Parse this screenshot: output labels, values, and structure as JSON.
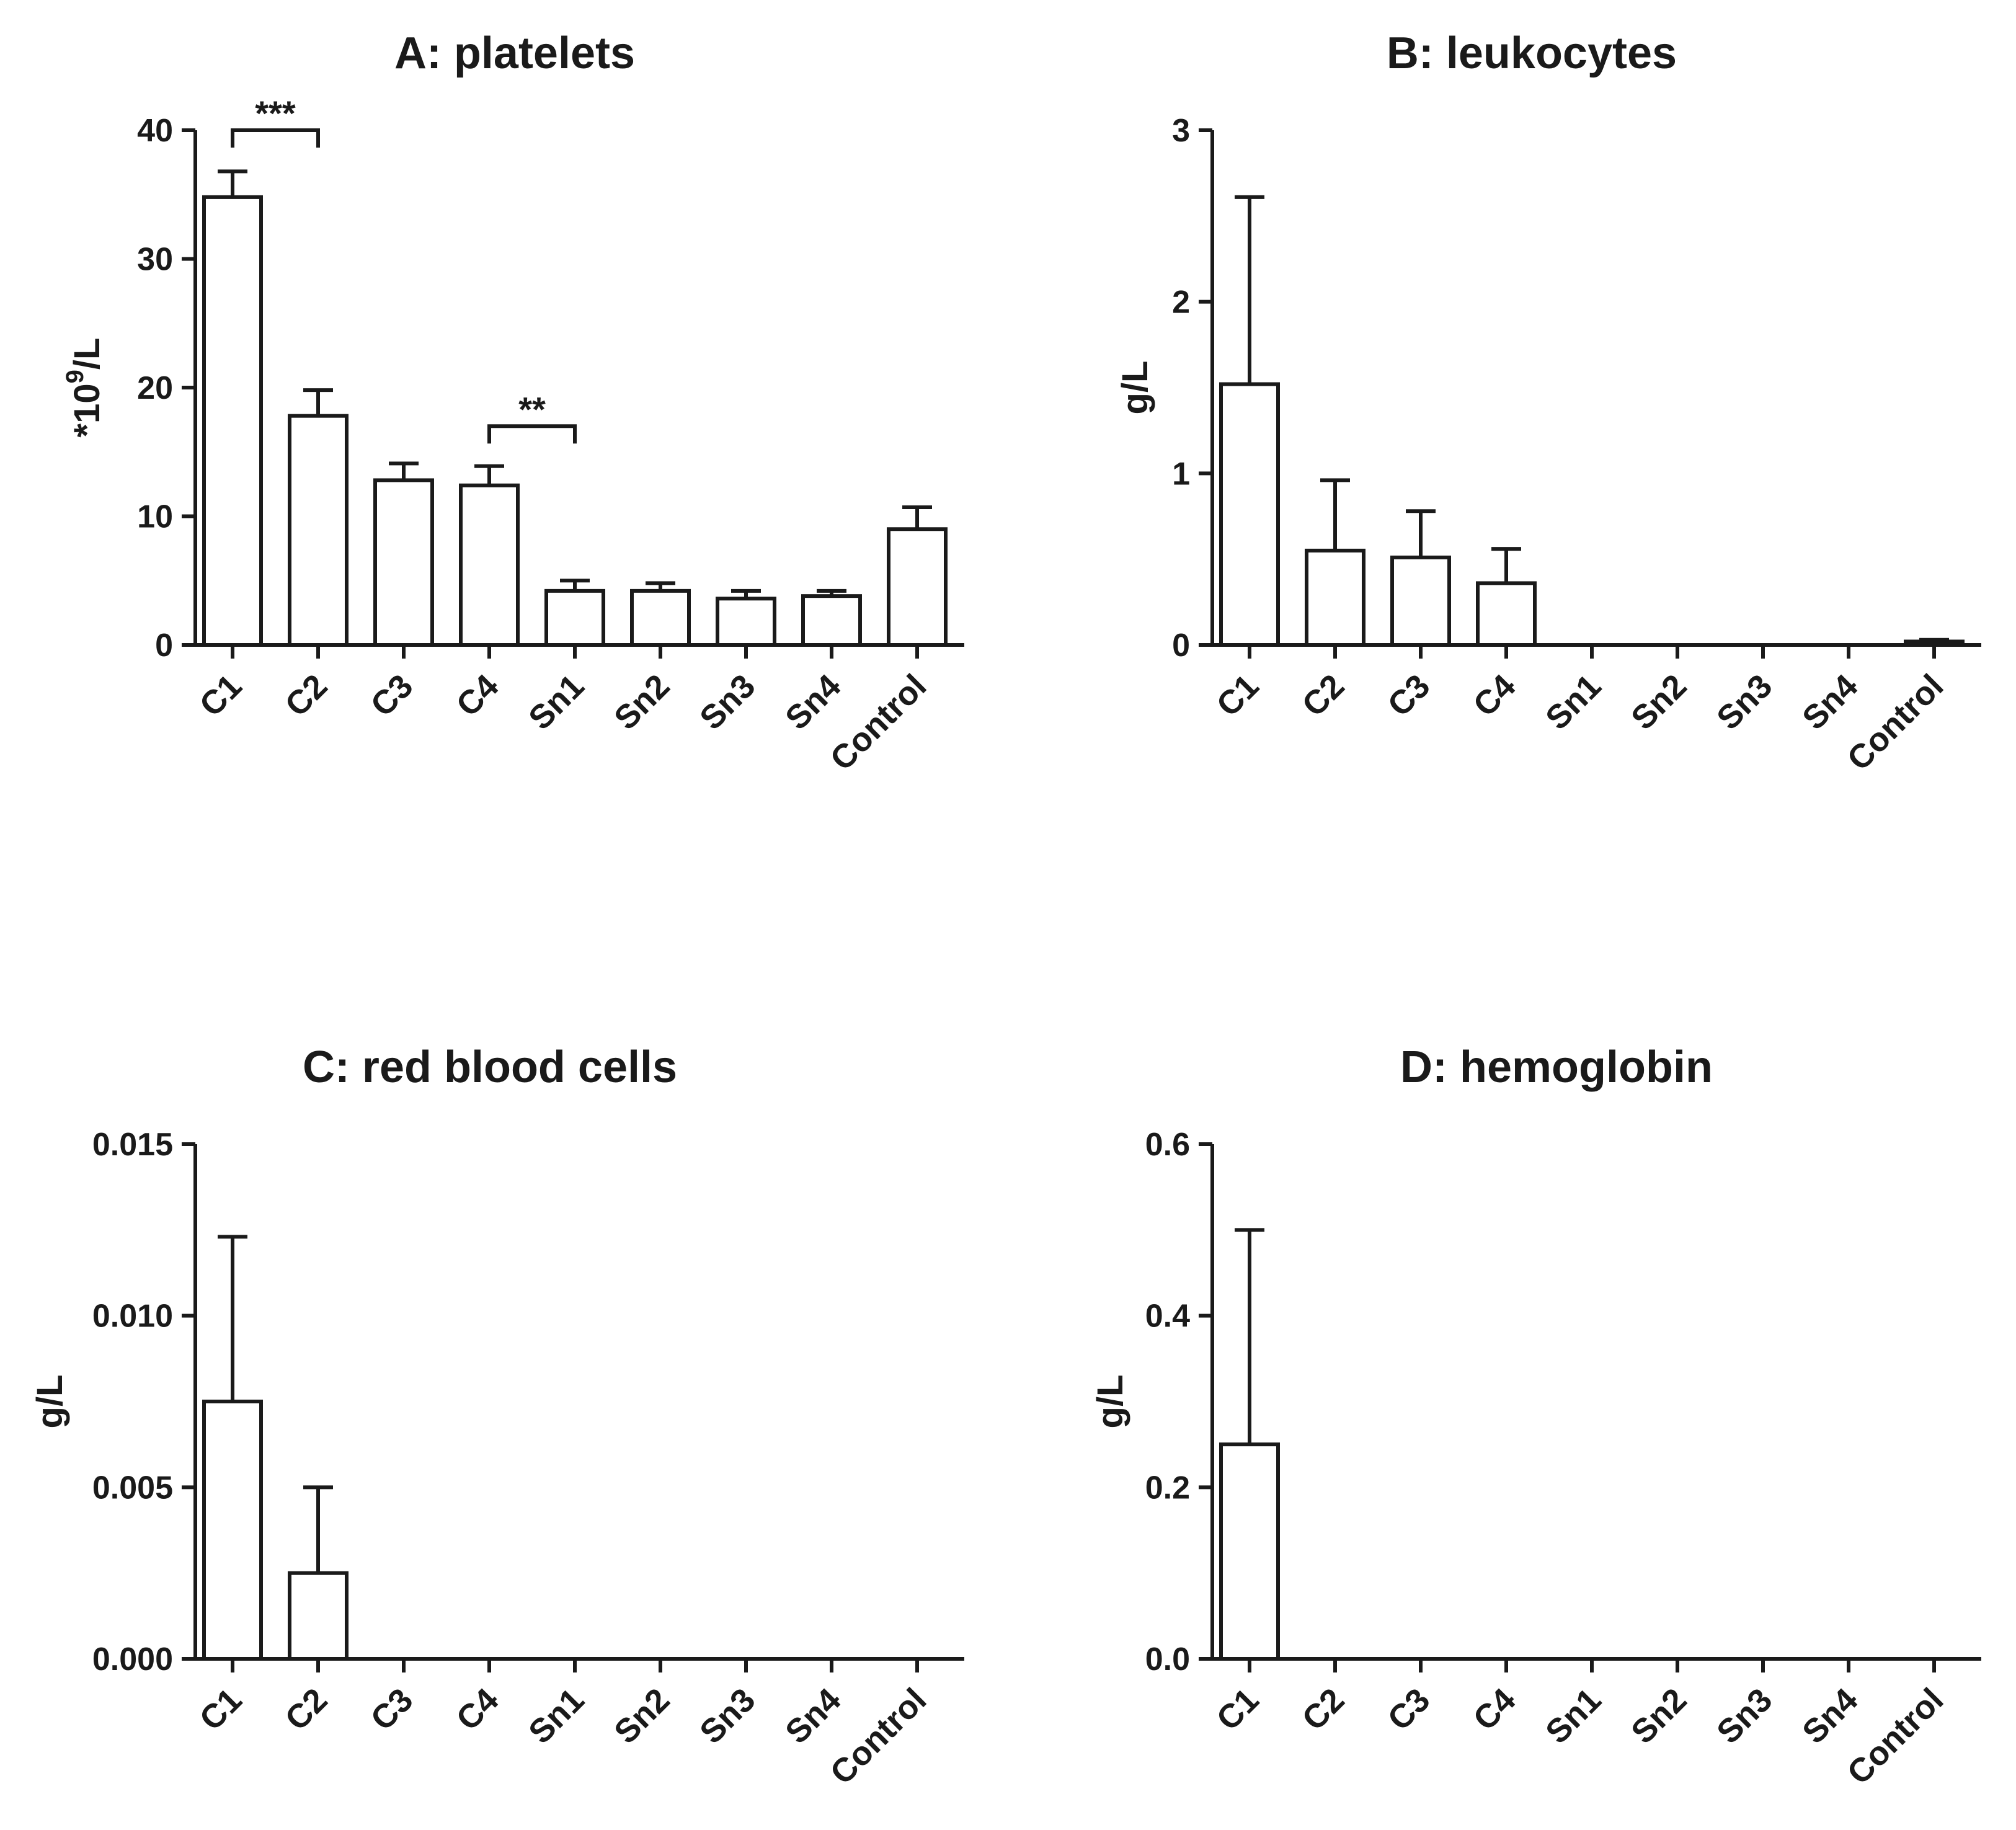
{
  "chart_data": [
    {
      "type": "bar",
      "title": "A: platelets",
      "ylabel": "*10^9/L",
      "ylabel_base": "*10",
      "ylabel_sup": "9",
      "ylabel_suffix": "/L",
      "categories": [
        "C1",
        "C2",
        "C3",
        "C4",
        "Sn1",
        "Sn2",
        "Sn3",
        "Sn4",
        "Control"
      ],
      "values": [
        34.8,
        17.8,
        12.8,
        12.4,
        4.2,
        4.2,
        3.6,
        3.8,
        9.0
      ],
      "errors": [
        2.0,
        2.0,
        1.3,
        1.5,
        0.8,
        0.6,
        0.6,
        0.4,
        1.7
      ],
      "ylim": [
        0,
        40
      ],
      "yticks": [
        "0",
        "10",
        "20",
        "30",
        "40"
      ],
      "significance": [
        {
          "from": "C1",
          "to": "C2",
          "label": "***",
          "y": 40
        },
        {
          "from": "C4",
          "to": "Sn1",
          "label": "**",
          "y": 17
        }
      ]
    },
    {
      "type": "bar",
      "title": "B: leukocytes",
      "ylabel": "g/L",
      "categories": [
        "C1",
        "C2",
        "C3",
        "C4",
        "Sn1",
        "Sn2",
        "Sn3",
        "Sn4",
        "Control"
      ],
      "values": [
        1.52,
        0.55,
        0.51,
        0.36,
        0,
        0,
        0,
        0,
        0.02
      ],
      "errors": [
        1.09,
        0.41,
        0.27,
        0.2,
        0,
        0,
        0,
        0,
        0.01
      ],
      "ylim": [
        0,
        3
      ],
      "yticks": [
        "0",
        "1",
        "2",
        "3"
      ]
    },
    {
      "type": "bar",
      "title": "C: red blood cells",
      "ylabel": "g/L",
      "categories": [
        "C1",
        "C2",
        "C3",
        "C4",
        "Sn1",
        "Sn2",
        "Sn3",
        "Sn4",
        "Control"
      ],
      "values": [
        0.0075,
        0.0025,
        0,
        0,
        0,
        0,
        0,
        0,
        0
      ],
      "errors": [
        0.0048,
        0.0025,
        0,
        0,
        0,
        0,
        0,
        0,
        0
      ],
      "ylim": [
        0,
        0.015
      ],
      "yticks": [
        "0.000",
        "0.005",
        "0.010",
        "0.015"
      ]
    },
    {
      "type": "bar",
      "title": "D: hemoglobin",
      "ylabel": "g/L",
      "categories": [
        "C1",
        "C2",
        "C3",
        "C4",
        "Sn1",
        "Sn2",
        "Sn3",
        "Sn4",
        "Control"
      ],
      "values": [
        0.25,
        0,
        0,
        0,
        0,
        0,
        0,
        0,
        0
      ],
      "errors": [
        0.25,
        0,
        0,
        0,
        0,
        0,
        0,
        0,
        0
      ],
      "ylim": [
        0,
        0.6
      ],
      "yticks": [
        "0.0",
        "0.2",
        "0.4",
        "0.6"
      ]
    }
  ]
}
